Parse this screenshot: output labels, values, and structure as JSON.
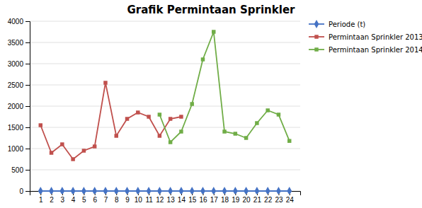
{
  "chart_data": {
    "type": "line",
    "title": "Grafik Permintaan Sprinkler",
    "x": [
      1,
      2,
      3,
      4,
      5,
      6,
      7,
      8,
      9,
      10,
      11,
      12,
      13,
      14,
      15,
      16,
      17,
      18,
      19,
      20,
      21,
      22,
      23,
      24
    ],
    "series": [
      {
        "name": "Periode (t)",
        "color": "#4472C4",
        "marker": "diamond",
        "values": [
          0,
          0,
          0,
          0,
          0,
          0,
          0,
          0,
          0,
          0,
          0,
          0,
          0,
          0,
          0,
          0,
          0,
          0,
          0,
          0,
          0,
          0,
          0,
          0
        ]
      },
      {
        "name": "Permintaan Sprinkler 2013",
        "color": "#C0504D",
        "marker": "square",
        "values": [
          1550,
          900,
          1100,
          750,
          950,
          1050,
          2550,
          1300,
          1700,
          1850,
          1750,
          1300,
          1700,
          1750,
          null,
          null,
          null,
          null,
          null,
          null,
          null,
          null,
          null,
          null
        ]
      },
      {
        "name": "Permintaan Sprinkler 2014",
        "color": "#70AD47",
        "marker": "square",
        "values": [
          null,
          null,
          null,
          null,
          null,
          null,
          null,
          null,
          null,
          null,
          null,
          1800,
          1150,
          1400,
          2050,
          3100,
          3750,
          1400,
          1350,
          1250,
          1600,
          1900,
          1800,
          1180
        ]
      }
    ],
    "xlim": [
      0,
      25
    ],
    "xticks": [
      1,
      2,
      3,
      4,
      5,
      6,
      7,
      8,
      9,
      10,
      11,
      12,
      13,
      14,
      15,
      16,
      17,
      18,
      19,
      20,
      21,
      22,
      23,
      24
    ],
    "ylim": [
      0,
      4000
    ],
    "yticks": [
      0,
      500,
      1000,
      1500,
      2000,
      2500,
      3000,
      3500,
      4000
    ],
    "grid": true,
    "legend": "upper right"
  }
}
